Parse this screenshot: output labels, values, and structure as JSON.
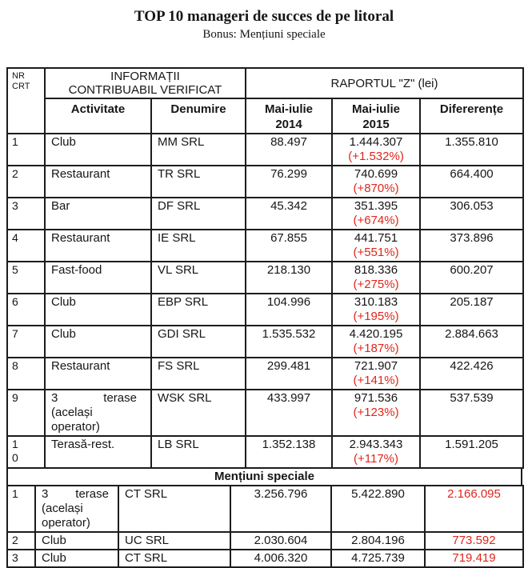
{
  "title": "TOP 10 manageri de succes de pe litoral",
  "subtitle": "Bonus: Mențiuni speciale",
  "colors": {
    "accent_red": "#e0251c",
    "border": "#1c1c1c"
  },
  "table": {
    "header": {
      "nr": "NR\nCRT",
      "info": "INFORMAȚII\nCONTRIBUABIL VERIFICAT",
      "raport": "RAPORTUL \"Z\" (lei)",
      "activitate": "Activitate",
      "denumire": "Denumire",
      "col2014": "Mai-iulie\n2014",
      "col2015": "Mai-iulie\n2015",
      "diferente": "Difererențe"
    },
    "rows": [
      {
        "nr": "1",
        "activitate": "Club",
        "denumire": "MM SRL",
        "v2014": "88.497",
        "v2015": "1.444.307",
        "pct": "(+1.532%)",
        "dif": "1.355.810"
      },
      {
        "nr": "2",
        "activitate": "Restaurant",
        "denumire": "TR SRL",
        "v2014": "76.299",
        "v2015": "740.699",
        "pct": "(+870%)",
        "dif": "664.400"
      },
      {
        "nr": "3",
        "activitate": "Bar",
        "denumire": "DF SRL",
        "v2014": "45.342",
        "v2015": "351.395",
        "pct": "(+674%)",
        "dif": "306.053"
      },
      {
        "nr": "4",
        "activitate": "Restaurant",
        "denumire": "IE SRL",
        "v2014": "67.855",
        "v2015": "441.751",
        "pct": "(+551%)",
        "dif": "373.896"
      },
      {
        "nr": "5",
        "activitate": "Fast-food",
        "denumire": "VL SRL",
        "v2014": "218.130",
        "v2015": "818.336",
        "pct": "(+275%)",
        "dif": "600.207"
      },
      {
        "nr": "6",
        "activitate": "Club",
        "denumire": "EBP SRL",
        "v2014": "104.996",
        "v2015": "310.183",
        "pct": "(+195%)",
        "dif": "205.187"
      },
      {
        "nr": "7",
        "activitate": "Club",
        "denumire": "GDI SRL",
        "v2014": "1.535.532",
        "v2015": "4.420.195",
        "pct": "(+187%)",
        "dif": "2.884.663"
      },
      {
        "nr": "8",
        "activitate": "Restaurant",
        "denumire": "FS SRL",
        "v2014": "299.481",
        "v2015": "721.907",
        "pct": "(+141%)",
        "dif": "422.426"
      },
      {
        "nr": "9",
        "activitate": {
          "justify": [
            "3",
            "terase"
          ],
          "lines": [
            "(același",
            "operator)"
          ]
        },
        "denumire": "WSK SRL",
        "v2014": "433.997",
        "v2015": "971.536",
        "pct": "(+123%)",
        "dif": "537.539"
      },
      {
        "nr": "1\n0",
        "activitate": "Terasă-rest.",
        "denumire": "LB SRL",
        "v2014": "1.352.138",
        "v2015": "2.943.343",
        "pct": "(+117%)",
        "dif": "1.591.205"
      }
    ],
    "mentions_title": "Mențiuni speciale",
    "mentions_rows": [
      {
        "nr": "1",
        "activitate": {
          "justify": [
            "3",
            "terase"
          ],
          "lines": [
            "(același",
            "operator)"
          ]
        },
        "denumire": "CT SRL",
        "v2014": "3.256.796",
        "v2015": "5.422.890",
        "pct": "",
        "dif": "2.166.095",
        "dif_red": true
      },
      {
        "nr": "2",
        "activitate": "Club",
        "denumire": "UC SRL",
        "v2014": "2.030.604",
        "v2015": "2.804.196",
        "pct": "",
        "dif": "773.592",
        "dif_red": true
      },
      {
        "nr": "3",
        "activitate": "Club",
        "denumire": "CT SRL",
        "v2014": "4.006.320",
        "v2015": "4.725.739",
        "pct": "",
        "dif": "719.419",
        "dif_red": true
      }
    ]
  }
}
